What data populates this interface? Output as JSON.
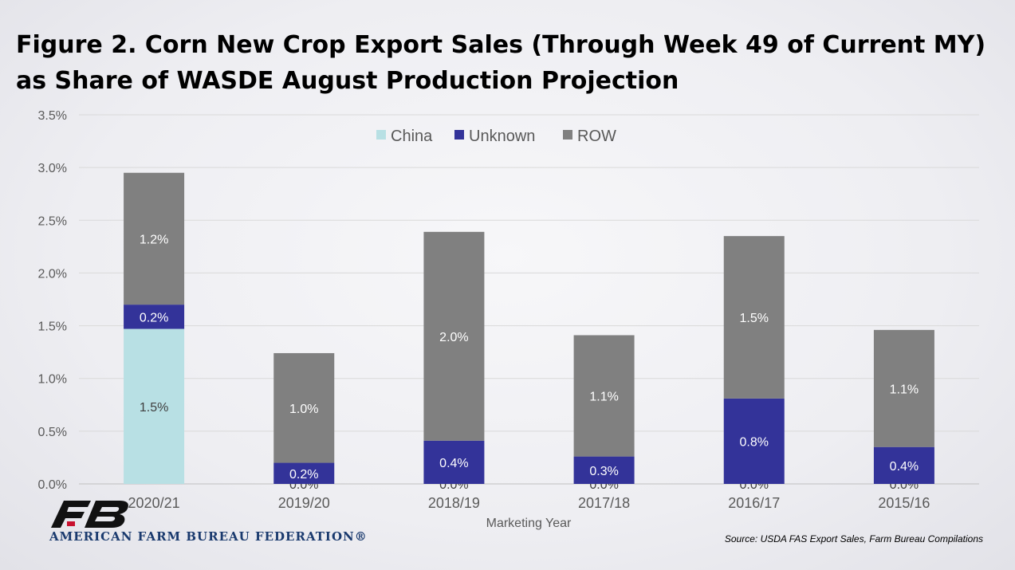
{
  "chart_data": {
    "type": "bar",
    "stacked": true,
    "title": "Figure 2. Corn New Crop Export Sales (Through Week 49 of Current MY) as Share of WASDE August Production Projection",
    "xlabel": "Marketing Year",
    "ylabel": "",
    "ylim": [
      0,
      3.5
    ],
    "yticks": [
      "0.0%",
      "0.5%",
      "1.0%",
      "1.5%",
      "2.0%",
      "2.5%",
      "3.0%",
      "3.5%"
    ],
    "grid": true,
    "legend_position": "top",
    "categories": [
      "2020/21",
      "2019/20",
      "2018/19",
      "2017/18",
      "2016/17",
      "2015/16"
    ],
    "series": [
      {
        "name": "China",
        "color": "#b8e0e4",
        "values": [
          1.47,
          0.0,
          0.0,
          0.0,
          0.0,
          0.0
        ],
        "labels": [
          "1.5%",
          "0.0%",
          "0.0%",
          "0.0%",
          "0.0%",
          "0.0%"
        ]
      },
      {
        "name": "Unknown",
        "color": "#333399",
        "values": [
          0.23,
          0.2,
          0.41,
          0.26,
          0.81,
          0.35
        ],
        "labels": [
          "0.2%",
          "0.2%",
          "0.4%",
          "0.3%",
          "0.8%",
          "0.4%"
        ]
      },
      {
        "name": "ROW",
        "color": "#808080",
        "values": [
          1.25,
          1.04,
          1.98,
          1.15,
          1.54,
          1.11
        ],
        "labels": [
          "1.2%",
          "1.0%",
          "2.0%",
          "1.1%",
          "1.5%",
          "1.1%"
        ]
      }
    ]
  },
  "logo": {
    "text": "AMERICAN FARM BUREAU FEDERATION®",
    "color": "#1a3a6e"
  },
  "source": "Source: USDA FAS Export Sales, Farm Bureau Compilations"
}
